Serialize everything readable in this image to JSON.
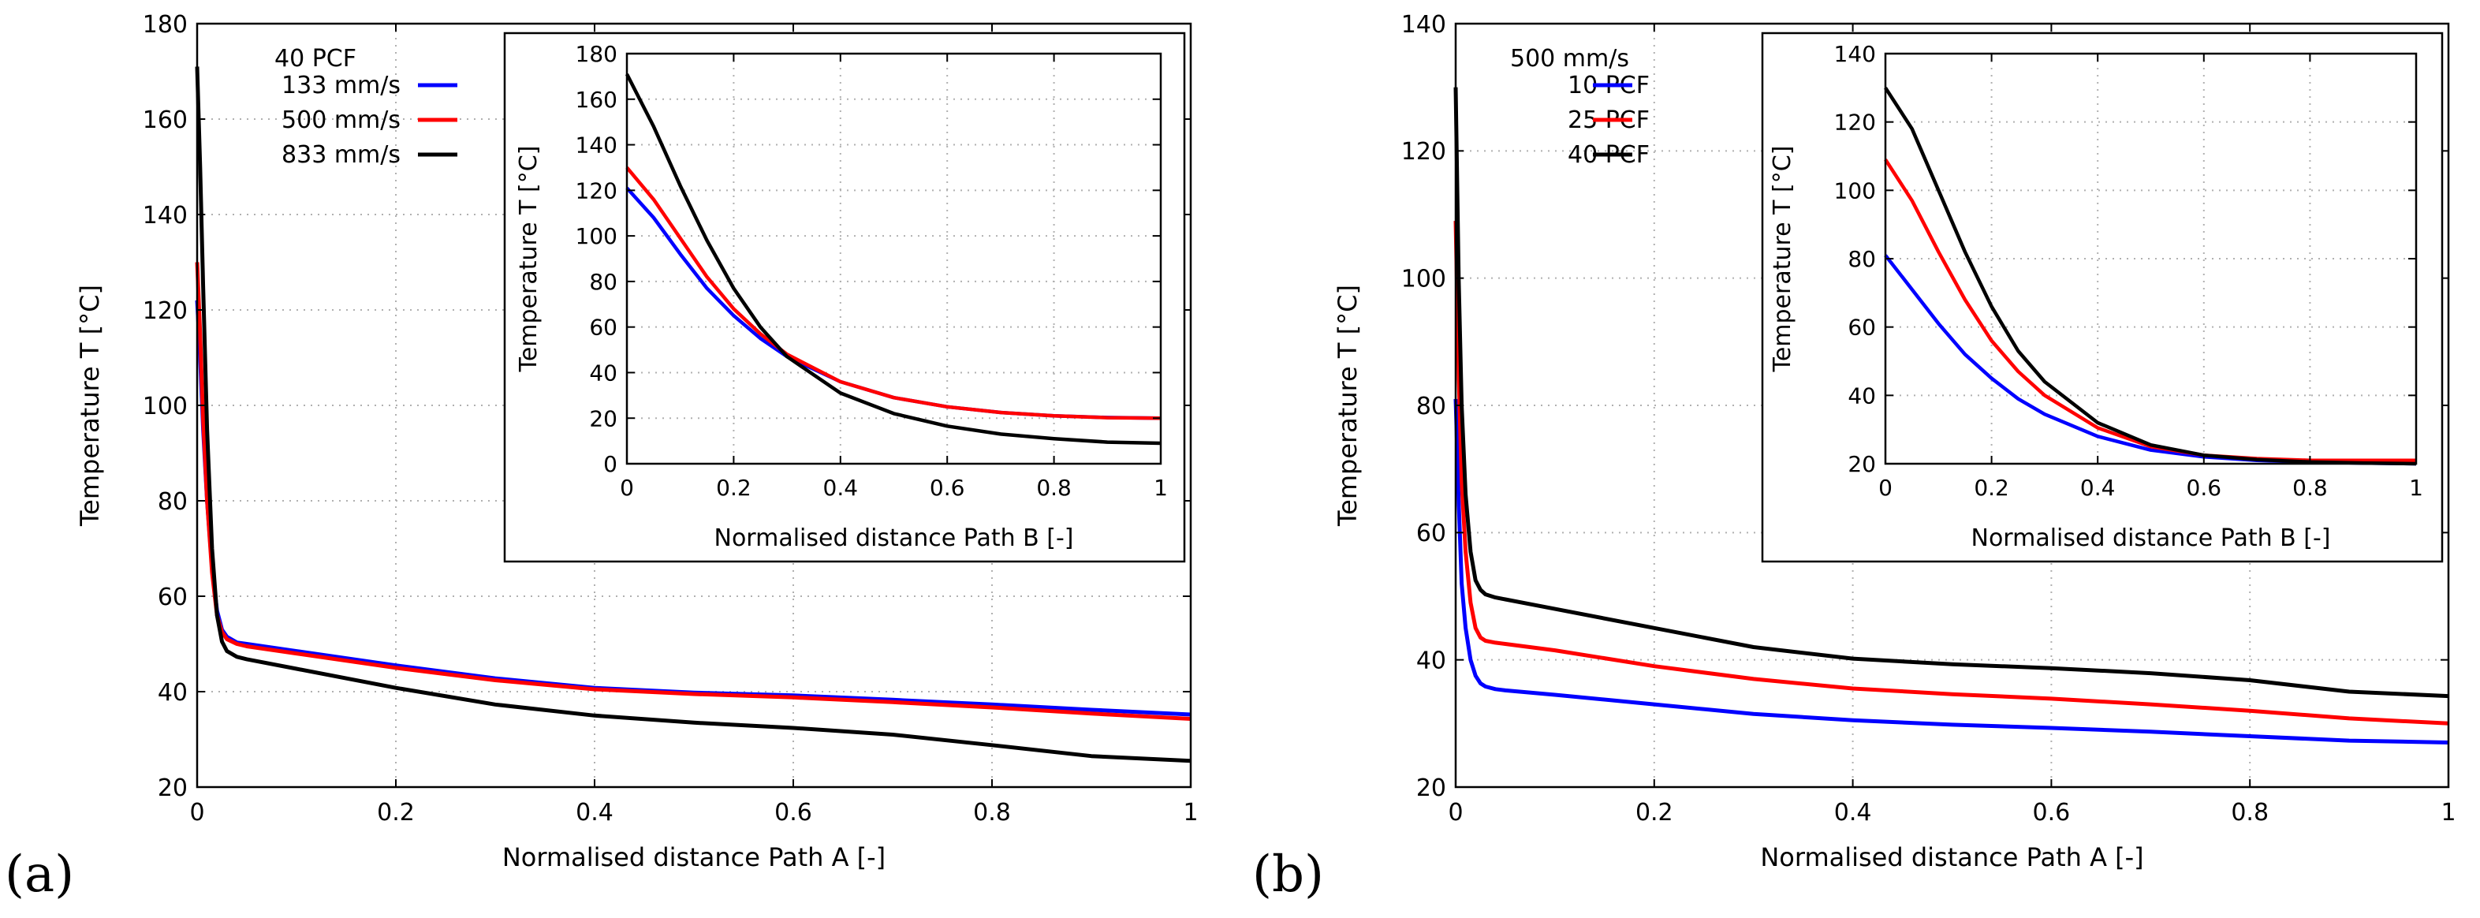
{
  "chart_data": [
    {
      "type": "line",
      "panel_label": "(a)",
      "legend_title": "40 PCF",
      "xlabel": "Normalised distance Path A [-]",
      "ylabel": "Temperature T [°C]",
      "xlim": [
        0,
        1
      ],
      "ylim": [
        20,
        180
      ],
      "xticks": [
        0,
        0.2,
        0.4,
        0.6,
        0.8,
        1
      ],
      "yticks": [
        20,
        40,
        60,
        80,
        100,
        120,
        140,
        160,
        180
      ],
      "grid": true,
      "legend_position": "top-left",
      "series": [
        {
          "name": "133 mm/s",
          "color": "#0000ff",
          "x": [
            0,
            0.003,
            0.006,
            0.01,
            0.015,
            0.02,
            0.025,
            0.03,
            0.04,
            0.05,
            0.1,
            0.2,
            0.3,
            0.4,
            0.5,
            0.6,
            0.7,
            0.8,
            0.9,
            1.0
          ],
          "y": [
            122,
            110,
            95,
            80,
            66,
            57,
            53,
            51.5,
            50.3,
            50,
            48.5,
            45.5,
            42.8,
            40.8,
            39.8,
            39.2,
            38.3,
            37.3,
            36.2,
            35.2
          ]
        },
        {
          "name": "500 mm/s",
          "color": "#ff0000",
          "x": [
            0,
            0.003,
            0.006,
            0.01,
            0.015,
            0.02,
            0.025,
            0.03,
            0.04,
            0.05,
            0.1,
            0.2,
            0.3,
            0.4,
            0.5,
            0.6,
            0.7,
            0.8,
            0.9,
            1.0
          ],
          "y": [
            130,
            115,
            97,
            80,
            65,
            56,
            52.5,
            51,
            50,
            49.5,
            48,
            45,
            42.4,
            40.5,
            39.5,
            38.8,
            37.8,
            36.7,
            35.4,
            34.3
          ]
        },
        {
          "name": "833 mm/s",
          "color": "#000000",
          "x": [
            0,
            0.003,
            0.006,
            0.01,
            0.015,
            0.02,
            0.025,
            0.03,
            0.04,
            0.05,
            0.1,
            0.2,
            0.3,
            0.4,
            0.5,
            0.6,
            0.7,
            0.8,
            0.9,
            1.0
          ],
          "y": [
            171,
            150,
            125,
            95,
            70,
            56,
            50.5,
            48.5,
            47.3,
            46.8,
            44.8,
            40.8,
            37.3,
            35.0,
            33.5,
            32.4,
            31.0,
            28.8,
            26.5,
            25.5
          ]
        }
      ],
      "inset": {
        "xlabel": "Normalised distance Path B [-]",
        "ylabel": "Temperature T [°C]",
        "xlim": [
          0,
          1
        ],
        "ylim": [
          0,
          180
        ],
        "xticks": [
          0,
          0.2,
          0.4,
          0.6,
          0.8,
          1
        ],
        "yticks": [
          0,
          20,
          40,
          60,
          80,
          100,
          120,
          140,
          160,
          180
        ],
        "grid": true,
        "series": [
          {
            "name": "133 mm/s",
            "color": "#0000ff",
            "x": [
              0,
              0.05,
              0.1,
              0.15,
              0.2,
              0.25,
              0.3,
              0.4,
              0.5,
              0.6,
              0.7,
              0.8,
              0.9,
              1.0
            ],
            "y": [
              121,
              108,
              92,
              77,
              65,
              55,
              47,
              36,
              29,
              25,
              22.5,
              21,
              20.3,
              20
            ]
          },
          {
            "name": "500 mm/s",
            "color": "#ff0000",
            "x": [
              0,
              0.05,
              0.1,
              0.15,
              0.2,
              0.25,
              0.3,
              0.4,
              0.5,
              0.6,
              0.7,
              0.8,
              0.9,
              1.0
            ],
            "y": [
              130,
              116,
              99,
              82,
              68,
              57,
              48,
              36,
              29,
              25,
              22.5,
              21,
              20.2,
              20
            ]
          },
          {
            "name": "833 mm/s",
            "color": "#000000",
            "x": [
              0,
              0.05,
              0.1,
              0.15,
              0.2,
              0.25,
              0.3,
              0.4,
              0.5,
              0.6,
              0.7,
              0.8,
              0.9,
              1.0
            ],
            "y": [
              171,
              148,
              122,
              98,
              77,
              60,
              47,
              31,
              22,
              16.5,
              13,
              11,
              9.5,
              9
            ]
          }
        ]
      }
    },
    {
      "type": "line",
      "panel_label": "(b)",
      "legend_title": "500 mm/s",
      "xlabel": "Normalised distance Path A [-]",
      "ylabel": "Temperature T [°C]",
      "xlim": [
        0,
        1
      ],
      "ylim": [
        20,
        140
      ],
      "xticks": [
        0,
        0.2,
        0.4,
        0.6,
        0.8,
        1
      ],
      "yticks": [
        20,
        40,
        60,
        80,
        100,
        120,
        140
      ],
      "grid": true,
      "legend_position": "top-left",
      "series": [
        {
          "name": "10 PCF",
          "color": "#0000ff",
          "x": [
            0,
            0.003,
            0.006,
            0.01,
            0.015,
            0.02,
            0.025,
            0.03,
            0.04,
            0.05,
            0.1,
            0.2,
            0.3,
            0.4,
            0.5,
            0.6,
            0.7,
            0.8,
            0.9,
            1.0
          ],
          "y": [
            81,
            65,
            52,
            45,
            40,
            37.5,
            36.3,
            35.8,
            35.4,
            35.2,
            34.5,
            33,
            31.5,
            30.5,
            29.8,
            29.3,
            28.7,
            28,
            27.3,
            27
          ]
        },
        {
          "name": "25 PCF",
          "color": "#ff0000",
          "x": [
            0,
            0.003,
            0.006,
            0.01,
            0.015,
            0.02,
            0.025,
            0.03,
            0.04,
            0.05,
            0.1,
            0.2,
            0.3,
            0.4,
            0.5,
            0.6,
            0.7,
            0.8,
            0.9,
            1.0
          ],
          "y": [
            109,
            85,
            68,
            57,
            49,
            45,
            43.5,
            43,
            42.7,
            42.5,
            41.5,
            39,
            37,
            35.5,
            34.6,
            33.9,
            33,
            32,
            30.8,
            30
          ]
        },
        {
          "name": "40 PCF",
          "color": "#000000",
          "x": [
            0,
            0.003,
            0.006,
            0.01,
            0.015,
            0.02,
            0.025,
            0.03,
            0.04,
            0.05,
            0.1,
            0.2,
            0.3,
            0.4,
            0.5,
            0.6,
            0.7,
            0.8,
            0.9,
            1.0
          ],
          "y": [
            130,
            100,
            80,
            66,
            57,
            52.5,
            51,
            50.3,
            49.8,
            49.5,
            48,
            45,
            42,
            40.2,
            39.3,
            38.7,
            37.9,
            36.8,
            35,
            34.3
          ]
        }
      ],
      "inset": {
        "xlabel": "Normalised distance Path B [-]",
        "ylabel": "Temperature T [°C]",
        "xlim": [
          0,
          1
        ],
        "ylim": [
          20,
          140
        ],
        "xticks": [
          0,
          0.2,
          0.4,
          0.6,
          0.8,
          1
        ],
        "yticks": [
          20,
          40,
          60,
          80,
          100,
          120,
          140
        ],
        "grid": true,
        "series": [
          {
            "name": "10 PCF",
            "color": "#0000ff",
            "x": [
              0,
              0.05,
              0.1,
              0.15,
              0.2,
              0.25,
              0.3,
              0.4,
              0.5,
              0.6,
              0.7,
              0.8,
              0.9,
              1.0
            ],
            "y": [
              81,
              71,
              61,
              52,
              45,
              39,
              34.5,
              28,
              24,
              22,
              21,
              20.5,
              20.2,
              20
            ]
          },
          {
            "name": "25 PCF",
            "color": "#ff0000",
            "x": [
              0,
              0.05,
              0.1,
              0.15,
              0.2,
              0.25,
              0.3,
              0.4,
              0.5,
              0.6,
              0.7,
              0.8,
              0.9,
              1.0
            ],
            "y": [
              109,
              97,
              82,
              68,
              56,
              47,
              40,
              30.5,
              25,
              22.5,
              21.5,
              21,
              21,
              21
            ]
          },
          {
            "name": "40 PCF",
            "color": "#000000",
            "x": [
              0,
              0.05,
              0.1,
              0.15,
              0.2,
              0.25,
              0.3,
              0.4,
              0.5,
              0.6,
              0.7,
              0.8,
              0.9,
              1.0
            ],
            "y": [
              130,
              118,
              100,
              82,
              66,
              53,
              44,
              32,
              25.5,
              22.5,
              21.2,
              20.5,
              20.2,
              20
            ]
          }
        ]
      }
    }
  ]
}
